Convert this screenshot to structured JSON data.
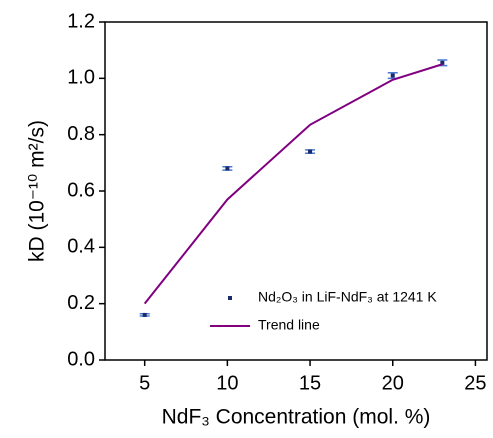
{
  "chart_data": {
    "type": "scatter",
    "xlabel": "NdF₃ Concentration (mol. %)",
    "ylabel": "kD (10⁻¹⁰ m²/s)",
    "xlim": [
      2.6,
      25.7
    ],
    "ylim": [
      0,
      1.2
    ],
    "xticks": [
      5,
      10,
      15,
      20,
      25
    ],
    "yticks": [
      {
        "value": 0,
        "label": "0.0"
      },
      0.2,
      0.4,
      0.6,
      0.8,
      {
        "value": 1,
        "label": "1.0"
      },
      1.2
    ],
    "legend": "lower right",
    "series": [
      {
        "name": "Nd₂O₃ in LiF-NdF₃ at 1241 K",
        "type": "scatter",
        "color": "#1a2a6c",
        "error_color": "#4a7bd0",
        "x": [
          5,
          10,
          15,
          20,
          23
        ],
        "values": [
          0.16,
          0.68,
          0.74,
          1.01,
          1.055
        ],
        "errors": [
          0.004,
          0.006,
          0.006,
          0.01,
          0.01
        ]
      },
      {
        "name": "Trend line",
        "type": "line",
        "color": "#800080",
        "x": [
          5,
          10,
          15,
          20,
          23
        ],
        "values": [
          0.2,
          0.57,
          0.835,
          0.995,
          1.05
        ]
      }
    ]
  }
}
